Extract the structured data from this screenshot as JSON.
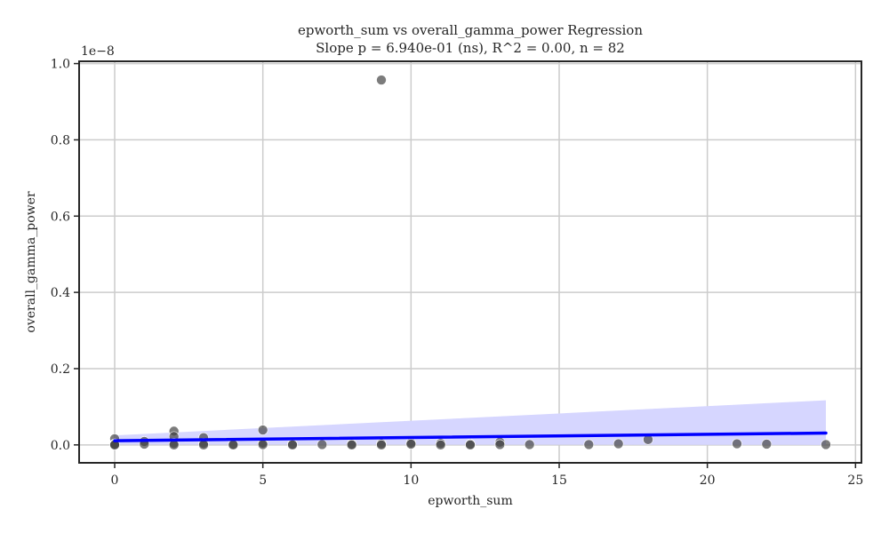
{
  "chart_data": {
    "type": "scatter",
    "title_lines": [
      "epworth_sum vs overall_gamma_power Regression",
      "Slope p = 6.940e-01 (ns), R^2 = 0.00, n = 82"
    ],
    "xlabel": "epworth_sum",
    "ylabel": "overall_gamma_power",
    "y_offset_label": "1e−8",
    "xlim": [
      -1.2,
      25.2
    ],
    "ylim": [
      -0.047,
      1.006
    ],
    "x_ticks": [
      0,
      5,
      10,
      15,
      20,
      25
    ],
    "x_tick_labels": [
      "0",
      "5",
      "10",
      "15",
      "20",
      "25"
    ],
    "y_ticks": [
      0.0,
      0.2,
      0.4,
      0.6,
      0.8,
      1.0
    ],
    "y_tick_labels": [
      "0.0",
      "0.2",
      "0.4",
      "0.6",
      "0.8",
      "1.0"
    ],
    "grid": true,
    "points": [
      {
        "x": 0,
        "y": 0.016
      },
      {
        "x": 0,
        "y": 0.003
      },
      {
        "x": 0,
        "y": 0.001
      },
      {
        "x": 0,
        "y": 0.0
      },
      {
        "x": 1,
        "y": 0.009
      },
      {
        "x": 1,
        "y": 0.002
      },
      {
        "x": 2,
        "y": 0.036
      },
      {
        "x": 2,
        "y": 0.022
      },
      {
        "x": 2,
        "y": 0.004
      },
      {
        "x": 2,
        "y": 0.0
      },
      {
        "x": 3,
        "y": 0.019
      },
      {
        "x": 3,
        "y": 0.004
      },
      {
        "x": 3,
        "y": 0.0
      },
      {
        "x": 4,
        "y": 0.002
      },
      {
        "x": 4,
        "y": 0.0
      },
      {
        "x": 5,
        "y": 0.039
      },
      {
        "x": 5,
        "y": 0.005
      },
      {
        "x": 5,
        "y": 0.001
      },
      {
        "x": 6,
        "y": 0.002
      },
      {
        "x": 6,
        "y": 0.0
      },
      {
        "x": 7,
        "y": 0.001
      },
      {
        "x": 8,
        "y": 0.002
      },
      {
        "x": 8,
        "y": 0.0
      },
      {
        "x": 9,
        "y": 0.957
      },
      {
        "x": 9,
        "y": 0.003
      },
      {
        "x": 9,
        "y": 0.0
      },
      {
        "x": 10,
        "y": 0.005
      },
      {
        "x": 10,
        "y": 0.002
      },
      {
        "x": 11,
        "y": 0.004
      },
      {
        "x": 11,
        "y": 0.0
      },
      {
        "x": 12,
        "y": 0.002
      },
      {
        "x": 12,
        "y": 0.0
      },
      {
        "x": 13,
        "y": 0.007
      },
      {
        "x": 13,
        "y": 0.001
      },
      {
        "x": 14,
        "y": 0.001
      },
      {
        "x": 16,
        "y": 0.001
      },
      {
        "x": 17,
        "y": 0.003
      },
      {
        "x": 18,
        "y": 0.014
      },
      {
        "x": 21,
        "y": 0.003
      },
      {
        "x": 22,
        "y": 0.002
      },
      {
        "x": 24,
        "y": 0.001
      }
    ],
    "regression_line": {
      "x": [
        0,
        24
      ],
      "y": [
        0.011,
        0.031
      ]
    },
    "confidence_band": {
      "x": [
        0,
        24
      ],
      "lower": [
        0.001,
        0.0
      ],
      "upper": [
        0.025,
        0.117
      ]
    },
    "colors": {
      "points": "#444444",
      "regression_line": "#0000ff",
      "band": "#d6d6ff",
      "grid": "#cccccc",
      "axes": "#262626"
    }
  }
}
